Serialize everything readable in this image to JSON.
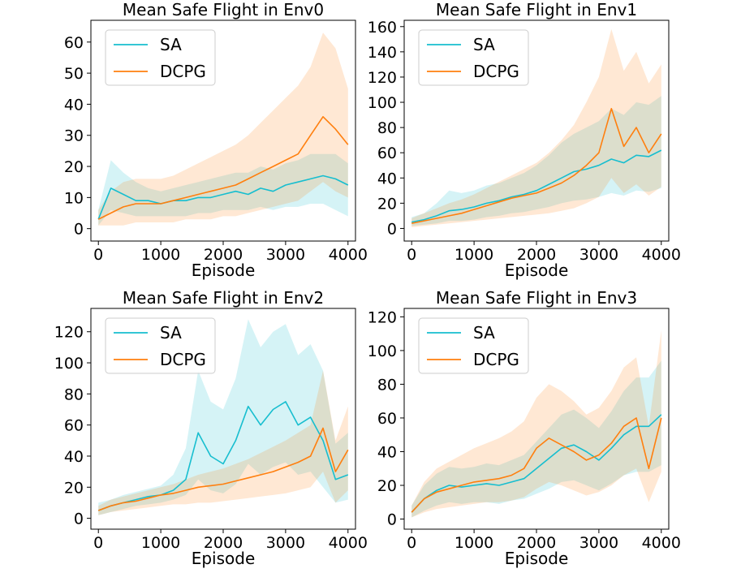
{
  "chart_data": [
    {
      "type": "line",
      "title": "Mean Safe Flight in Env0",
      "xlabel": "Episode",
      "ylabel": "",
      "xlim": [
        -120,
        4120
      ],
      "ylim": [
        -4,
        67
      ],
      "xticks": [
        0,
        1000,
        2000,
        3000,
        4000
      ],
      "yticks": [
        0,
        10,
        20,
        30,
        40,
        50,
        60
      ],
      "legend": "top-left",
      "x": [
        0,
        200,
        400,
        600,
        800,
        1000,
        1200,
        1400,
        1600,
        1800,
        2000,
        2200,
        2400,
        2600,
        2800,
        3000,
        3200,
        3400,
        3600,
        3800,
        4000
      ],
      "series": [
        {
          "name": "SA",
          "color": "#17becf",
          "values": [
            3,
            13,
            11,
            9,
            9,
            8,
            9,
            9,
            10,
            10,
            11,
            12,
            11,
            13,
            12,
            14,
            15,
            16,
            17,
            16,
            14
          ],
          "lower": [
            1,
            6,
            5,
            4,
            4,
            4,
            4,
            4,
            5,
            5,
            6,
            6,
            6,
            7,
            6,
            7,
            7,
            8,
            8,
            6,
            4
          ],
          "upper": [
            6,
            22,
            18,
            15,
            13,
            12,
            13,
            14,
            15,
            16,
            17,
            18,
            18,
            20,
            19,
            21,
            22,
            24,
            24,
            24,
            21
          ]
        },
        {
          "name": "DCPG",
          "color": "#ff7f0e",
          "values": [
            3,
            5,
            7,
            8,
            8,
            8,
            9,
            10,
            11,
            12,
            13,
            14,
            16,
            18,
            20,
            22,
            24,
            30,
            36,
            32,
            27
          ],
          "lower": [
            1,
            1,
            1,
            2,
            2,
            2,
            2,
            3,
            3,
            3,
            4,
            4,
            5,
            6,
            7,
            8,
            9,
            12,
            15,
            12,
            10
          ],
          "upper": [
            6,
            12,
            15,
            16,
            16,
            16,
            17,
            19,
            21,
            23,
            25,
            27,
            30,
            34,
            38,
            42,
            46,
            52,
            63,
            58,
            45
          ]
        }
      ]
    },
    {
      "type": "line",
      "title": "Mean Safe Flight in Env1",
      "xlabel": "Episode",
      "ylabel": "",
      "xlim": [
        -120,
        4120
      ],
      "ylim": [
        -10,
        165
      ],
      "xticks": [
        0,
        1000,
        2000,
        3000,
        4000
      ],
      "yticks": [
        0,
        20,
        40,
        60,
        80,
        100,
        120,
        140,
        160
      ],
      "legend": "top-left",
      "x": [
        0,
        200,
        400,
        600,
        800,
        1000,
        1200,
        1400,
        1600,
        1800,
        2000,
        2200,
        2400,
        2600,
        2800,
        3000,
        3200,
        3400,
        3600,
        3800,
        4000
      ],
      "series": [
        {
          "name": "SA",
          "color": "#17becf",
          "values": [
            5,
            7,
            10,
            14,
            15,
            17,
            20,
            22,
            25,
            27,
            30,
            35,
            40,
            45,
            47,
            50,
            55,
            52,
            58,
            57,
            62
          ],
          "lower": [
            2,
            3,
            4,
            6,
            6,
            7,
            9,
            10,
            12,
            13,
            15,
            17,
            20,
            22,
            23,
            25,
            28,
            26,
            30,
            29,
            32
          ],
          "upper": [
            9,
            12,
            20,
            30,
            28,
            30,
            34,
            36,
            40,
            44,
            50,
            58,
            68,
            75,
            80,
            85,
            95,
            90,
            100,
            98,
            105
          ]
        },
        {
          "name": "DCPG",
          "color": "#ff7f0e",
          "values": [
            4,
            6,
            8,
            10,
            12,
            15,
            18,
            21,
            24,
            26,
            28,
            32,
            36,
            42,
            50,
            60,
            95,
            65,
            80,
            60,
            75
          ],
          "lower": [
            1,
            2,
            3,
            4,
            5,
            6,
            7,
            8,
            9,
            10,
            11,
            12,
            14,
            16,
            20,
            25,
            40,
            28,
            35,
            26,
            33
          ],
          "upper": [
            8,
            12,
            16,
            20,
            23,
            27,
            32,
            37,
            42,
            47,
            52,
            60,
            70,
            82,
            100,
            120,
            158,
            125,
            140,
            115,
            130
          ]
        }
      ]
    },
    {
      "type": "line",
      "title": "Mean Safe Flight in Env2",
      "xlabel": "Episode",
      "ylabel": "",
      "xlim": [
        -120,
        4120
      ],
      "ylim": [
        -7,
        135
      ],
      "xticks": [
        0,
        1000,
        2000,
        3000,
        4000
      ],
      "yticks": [
        0,
        20,
        40,
        60,
        80,
        100,
        120
      ],
      "legend": "top-left",
      "x": [
        0,
        200,
        400,
        600,
        800,
        1000,
        1200,
        1400,
        1600,
        1800,
        2000,
        2200,
        2400,
        2600,
        2800,
        3000,
        3200,
        3400,
        3600,
        3800,
        4000
      ],
      "series": [
        {
          "name": "SA",
          "color": "#17becf",
          "values": [
            5,
            8,
            10,
            12,
            14,
            15,
            18,
            25,
            55,
            40,
            35,
            50,
            72,
            60,
            70,
            75,
            60,
            65,
            50,
            25,
            28
          ],
          "lower": [
            2,
            4,
            6,
            8,
            9,
            10,
            12,
            15,
            25,
            18,
            16,
            22,
            35,
            28,
            33,
            36,
            28,
            30,
            20,
            10,
            12
          ],
          "upper": [
            10,
            12,
            15,
            17,
            19,
            21,
            28,
            45,
            95,
            75,
            70,
            90,
            128,
            110,
            120,
            125,
            105,
            112,
            95,
            48,
            55
          ]
        },
        {
          "name": "DCPG",
          "color": "#ff7f0e",
          "values": [
            5,
            8,
            10,
            11,
            13,
            15,
            16,
            18,
            20,
            21,
            22,
            24,
            26,
            28,
            30,
            33,
            36,
            40,
            58,
            30,
            44
          ],
          "lower": [
            2,
            4,
            5,
            6,
            7,
            8,
            9,
            9,
            10,
            10,
            11,
            12,
            13,
            14,
            15,
            16,
            18,
            20,
            30,
            10,
            18
          ],
          "upper": [
            8,
            12,
            14,
            16,
            18,
            20,
            22,
            25,
            28,
            30,
            32,
            35,
            38,
            42,
            46,
            50,
            55,
            60,
            95,
            50,
            72
          ]
        }
      ]
    },
    {
      "type": "line",
      "title": "Mean Safe Flight in Env3",
      "xlabel": "Episode",
      "ylabel": "",
      "xlim": [
        -120,
        4120
      ],
      "ylim": [
        -6,
        125
      ],
      "xticks": [
        0,
        1000,
        2000,
        3000,
        4000
      ],
      "yticks": [
        0,
        20,
        40,
        60,
        80,
        100,
        120
      ],
      "legend": "top-left",
      "x": [
        0,
        200,
        400,
        600,
        800,
        1000,
        1200,
        1400,
        1600,
        1800,
        2000,
        2200,
        2400,
        2600,
        2800,
        3000,
        3200,
        3400,
        3600,
        3800,
        4000
      ],
      "series": [
        {
          "name": "SA",
          "color": "#17becf",
          "values": [
            4,
            12,
            17,
            20,
            19,
            20,
            21,
            20,
            22,
            24,
            30,
            36,
            42,
            44,
            40,
            35,
            42,
            50,
            55,
            55,
            62
          ],
          "lower": [
            1,
            5,
            8,
            10,
            9,
            10,
            10,
            9,
            11,
            12,
            15,
            18,
            22,
            23,
            20,
            17,
            21,
            26,
            28,
            28,
            32
          ],
          "upper": [
            8,
            20,
            27,
            31,
            30,
            31,
            33,
            32,
            35,
            38,
            46,
            54,
            62,
            65,
            60,
            54,
            64,
            76,
            84,
            84,
            94
          ]
        },
        {
          "name": "DCPG",
          "color": "#ff7f0e",
          "values": [
            4,
            12,
            16,
            18,
            20,
            22,
            23,
            24,
            26,
            30,
            42,
            48,
            44,
            40,
            35,
            38,
            45,
            55,
            60,
            30,
            60
          ],
          "lower": [
            1,
            4,
            6,
            7,
            8,
            9,
            10,
            10,
            11,
            13,
            18,
            22,
            20,
            17,
            14,
            16,
            20,
            26,
            30,
            10,
            28
          ],
          "upper": [
            8,
            22,
            30,
            34,
            38,
            42,
            45,
            48,
            52,
            58,
            72,
            80,
            76,
            70,
            62,
            66,
            76,
            90,
            96,
            55,
            112
          ]
        }
      ]
    }
  ]
}
